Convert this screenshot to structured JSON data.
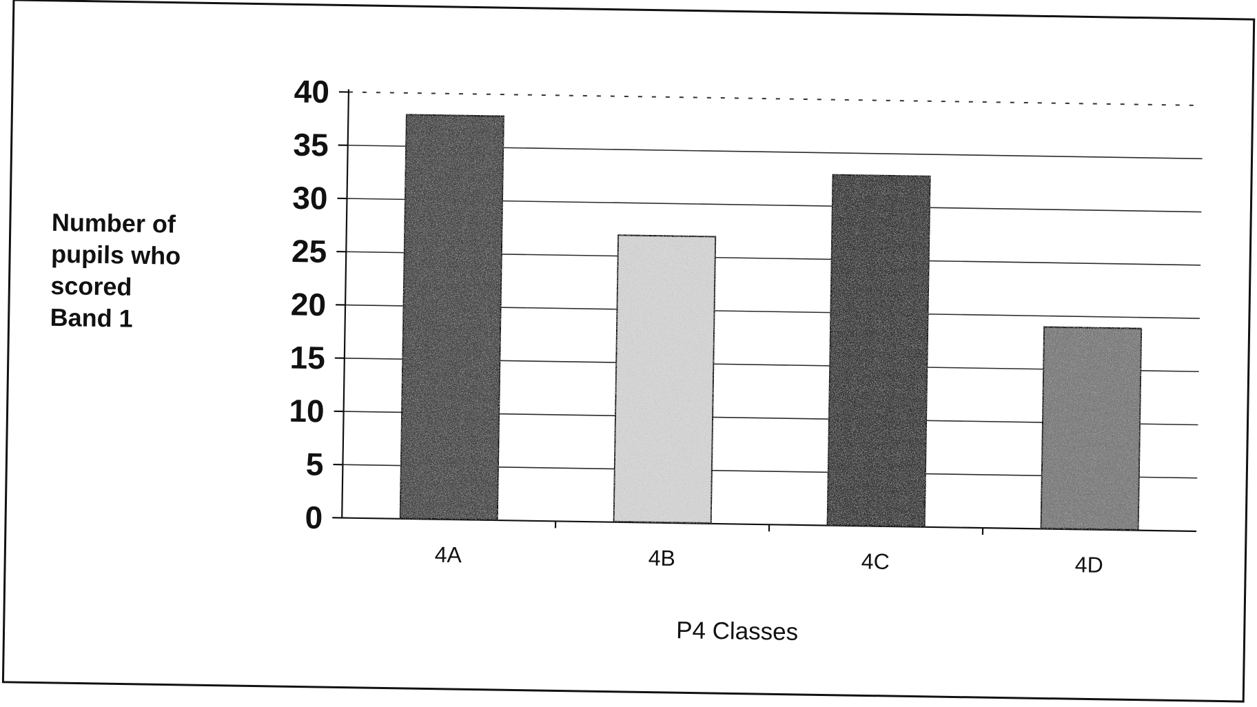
{
  "chart_data": {
    "type": "bar",
    "title": "",
    "ylabel_lines": [
      "Number of",
      "pupils who",
      "scored",
      "Band 1"
    ],
    "xlabel": "P4 Classes",
    "categories": [
      "4A",
      "4B",
      "4C",
      "4D"
    ],
    "values": [
      38,
      27,
      33,
      19
    ],
    "ylim": [
      0,
      40
    ],
    "yticks": [
      0,
      5,
      10,
      15,
      20,
      25,
      30,
      35,
      40
    ],
    "grid": true,
    "legend": "none",
    "bar_shades": [
      "#4a4a4a",
      "#d6d6d6",
      "#3a3a3a",
      "#7a7a7a"
    ]
  }
}
